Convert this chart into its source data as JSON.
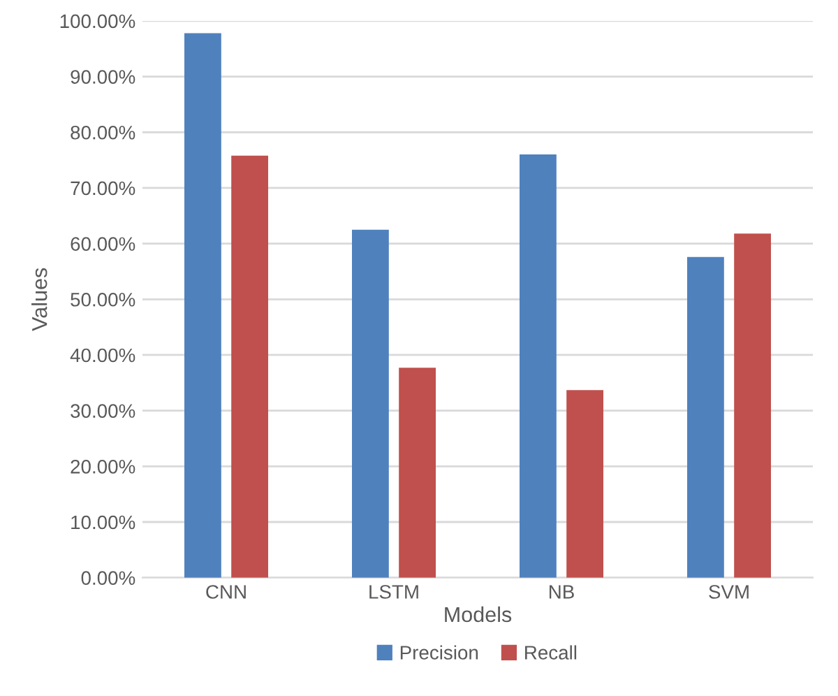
{
  "chart_data": {
    "type": "bar",
    "xlabel": "Models",
    "ylabel": "Values",
    "categories": [
      "CNN",
      "LSTM",
      "NB",
      "SVM"
    ],
    "series": [
      {
        "name": "Precision",
        "color": "#4f81bd",
        "values": [
          97.8,
          62.5,
          76,
          57.6
        ]
      },
      {
        "name": "Recall",
        "color": "#c0504d",
        "values": [
          75.8,
          37.7,
          33.7,
          61.8
        ]
      }
    ],
    "ylim": [
      0,
      100
    ],
    "yticks": [
      {
        "value": 0,
        "label": "0.00%"
      },
      {
        "value": 10,
        "label": "10.00%"
      },
      {
        "value": 20,
        "label": "20.00%"
      },
      {
        "value": 30,
        "label": "30.00%"
      },
      {
        "value": 40,
        "label": "40.00%"
      },
      {
        "value": 50,
        "label": "50.00%"
      },
      {
        "value": 60,
        "label": "60.00%"
      },
      {
        "value": 70,
        "label": "70.00%"
      },
      {
        "value": 80,
        "label": "80.00%"
      },
      {
        "value": 90,
        "label": "90.00%"
      },
      {
        "value": 100,
        "label": "100.00%"
      }
    ],
    "grid": "y",
    "legend": "bottom"
  }
}
